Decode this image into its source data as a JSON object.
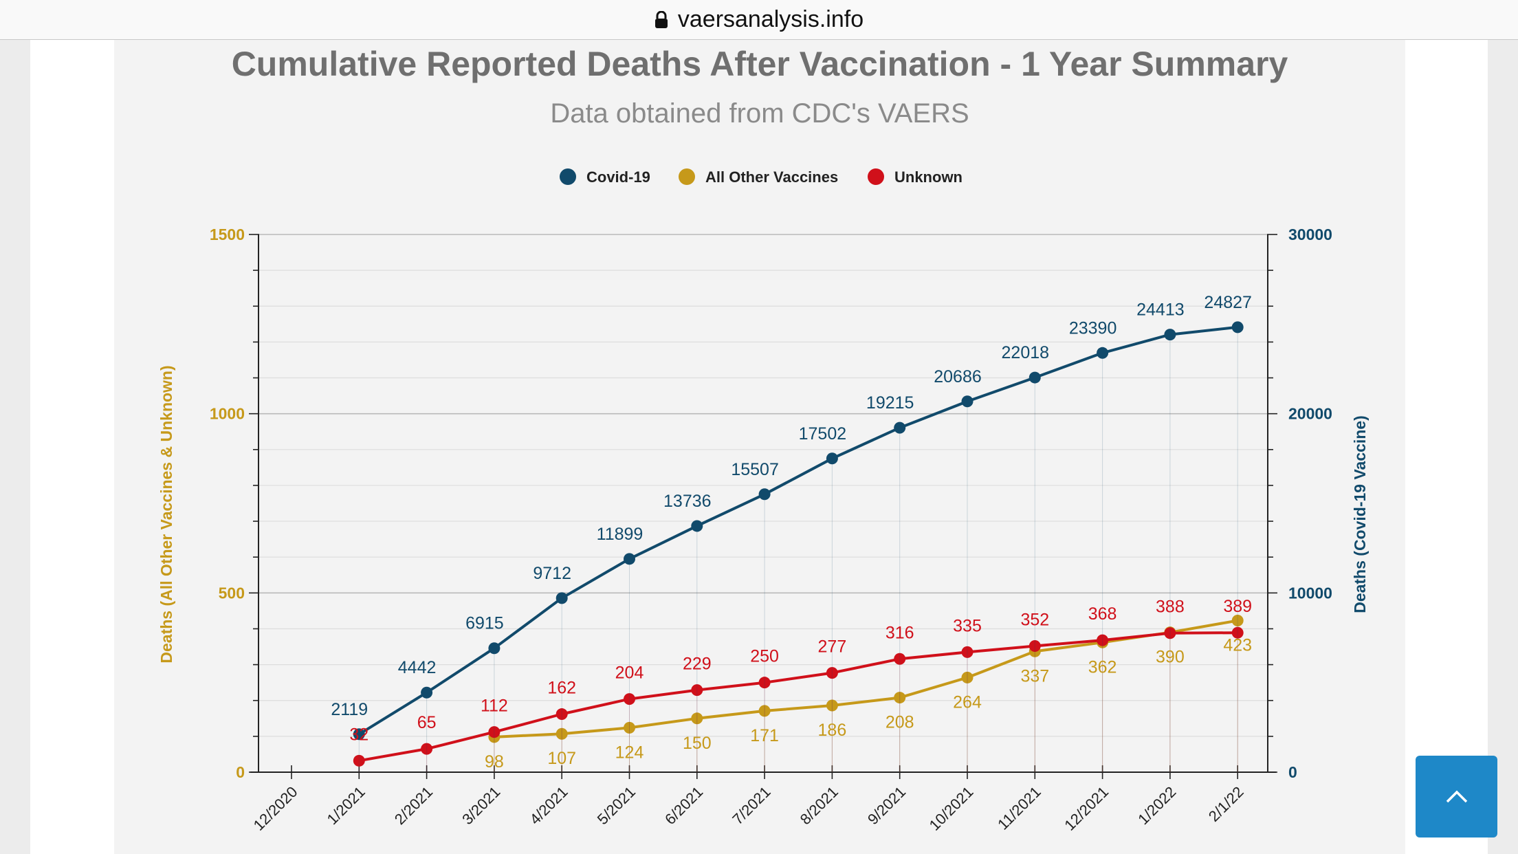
{
  "browser": {
    "url": "vaersanalysis.info",
    "lock_icon": "lock-icon"
  },
  "back_to_top": {
    "icon": "chevron-up-icon",
    "color": "#1e88c8"
  },
  "chart_data": {
    "type": "line",
    "title": "Cumulative Reported Deaths After Vaccination - 1 Year Summary",
    "subtitle": "Data obtained from CDC's VAERS",
    "categories": [
      "12/2020",
      "1/2021",
      "2/2021",
      "3/2021",
      "4/2021",
      "5/2021",
      "6/2021",
      "7/2021",
      "8/2021",
      "9/2021",
      "10/2021",
      "11/2021",
      "12/2021",
      "1/2022",
      "2/1/22"
    ],
    "ylabel_left": "Deaths (All Other Vaccines & Unknown)",
    "ylabel_right": "Deaths (Covid-19 Vaccine)",
    "ylim_left": [
      0,
      1500
    ],
    "ylim_right": [
      0,
      30000
    ],
    "yticks_left": [
      "0",
      "500",
      "1000",
      "1500"
    ],
    "yticks_right": [
      "0",
      "10000",
      "20000",
      "30000"
    ],
    "grid": true,
    "legend_position": "top-center",
    "series": [
      {
        "name": "Covid-19",
        "axis": "right",
        "color": "#114a6b",
        "values": [
          null,
          2119,
          4442,
          6915,
          9712,
          11899,
          13736,
          15507,
          17502,
          19215,
          20686,
          22018,
          23390,
          24413,
          24827
        ],
        "labels": [
          "",
          "2119",
          "4442",
          "6915",
          "9712",
          "11899",
          "13736",
          "15507",
          "17502",
          "19215",
          "20686",
          "22018",
          "23390",
          "24413",
          "24827"
        ]
      },
      {
        "name": "All Other Vaccines",
        "axis": "left",
        "color": "#c6991a",
        "values": [
          null,
          null,
          null,
          98,
          107,
          124,
          150,
          171,
          186,
          208,
          264,
          337,
          362,
          390,
          423
        ],
        "labels": [
          "",
          "",
          "",
          "98",
          "107",
          "124",
          "150",
          "171",
          "186",
          "208",
          "264",
          "337",
          "362",
          "390",
          "423"
        ]
      },
      {
        "name": "Unknown",
        "axis": "left",
        "color": "#d0101a",
        "values": [
          null,
          32,
          65,
          112,
          162,
          204,
          229,
          250,
          277,
          316,
          335,
          352,
          368,
          388,
          389
        ],
        "labels": [
          "",
          "32",
          "65",
          "112",
          "162",
          "204",
          "229",
          "250",
          "277",
          "316",
          "335",
          "352",
          "368",
          "388",
          "389"
        ]
      }
    ]
  }
}
